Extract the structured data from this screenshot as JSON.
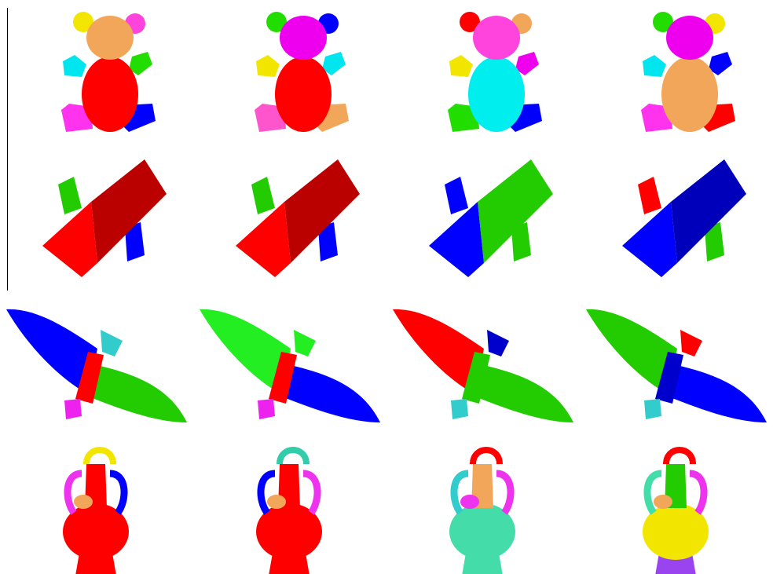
{
  "figure": {
    "rows": [
      {
        "shape": "teddy-bear",
        "segmentations": [
          {
            "head": "#f2a65a",
            "ear_left": "#f2e600",
            "ear_right": "#ff44dd",
            "arm_left": "#00e5ee",
            "arm_right": "#22dd00",
            "body": "#ff0000",
            "leg_left": "#ff33ee",
            "leg_right": "#0000ff"
          },
          {
            "head": "#ee00ee",
            "ear_left": "#22dd00",
            "ear_right": "#0000ff",
            "arm_left": "#f2e600",
            "arm_right": "#00e5ee",
            "body": "#ff0000",
            "leg_left": "#ff55cc",
            "leg_right": "#f2a65a"
          },
          {
            "head": "#ff44dd",
            "ear_left": "#ff0000",
            "ear_right": "#f2a65a",
            "arm_left": "#f2e600",
            "arm_right": "#ee00ee",
            "body": "#00eeee",
            "leg_left": "#22dd00",
            "leg_right": "#0000ff"
          },
          {
            "head": "#ee00ee",
            "ear_left": "#22dd00",
            "ear_right": "#f2e600",
            "arm_left": "#00e5ee",
            "arm_right": "#0000ff",
            "body": "#f2a65a",
            "leg_left": "#ff33ee",
            "leg_right": "#ff0000"
          }
        ]
      },
      {
        "shape": "block",
        "segmentations": [
          {
            "top": "#bb0000",
            "front": "#ff0000",
            "peg_back": "#22cc00",
            "peg_front": "#0000ff"
          },
          {
            "top": "#bb0000",
            "front": "#ff0000",
            "peg_back": "#22cc00",
            "peg_front": "#0000ff"
          },
          {
            "top": "#22cc00",
            "front": "#0000ff",
            "peg_back": "#0000ff",
            "peg_front": "#22cc00"
          },
          {
            "top": "#0000bb",
            "front": "#0000ff",
            "peg_back": "#ff0000",
            "peg_front": "#22cc00"
          }
        ]
      },
      {
        "shape": "bird",
        "segmentations": [
          {
            "wing_left": "#0000ff",
            "wing_right": "#22cc00",
            "body": "#ff0000",
            "tail": "#33cccc",
            "head": "#ee22ee"
          },
          {
            "wing_left": "#22ee22",
            "wing_right": "#0000ff",
            "body": "#ff0000",
            "tail": "#22ee22",
            "head": "#ee22ee"
          },
          {
            "wing_left": "#ff0000",
            "wing_right": "#22cc00",
            "body": "#22cc00",
            "tail": "#0000cc",
            "head": "#33cccc"
          },
          {
            "wing_left": "#22cc00",
            "wing_right": "#0000ff",
            "body": "#0000cc",
            "tail": "#ff0000",
            "head": "#33cccc"
          }
        ]
      },
      {
        "shape": "vase",
        "segmentations": [
          {
            "top_handle": "#f2e600",
            "handle_left": "#ee33ee",
            "handle_right": "#0000ff",
            "neck": "#ff0000",
            "body": "#ff0000",
            "base": "#ff0000",
            "spout": "#f2a65a"
          },
          {
            "top_handle": "#33ccaa",
            "handle_left": "#0000ff",
            "handle_right": "#ee33ee",
            "neck": "#ff0000",
            "body": "#ff0000",
            "base": "#ff0000",
            "spout": "#f2a65a"
          },
          {
            "top_handle": "#ff0000",
            "handle_left": "#33cccc",
            "handle_right": "#ee33ee",
            "neck": "#f2a65a",
            "body": "#44ddaa",
            "base": "#44ddaa",
            "spout": "#ee33ee"
          },
          {
            "top_handle": "#ff0000",
            "handle_left": "#44ddaa",
            "handle_right": "#ee33ee",
            "neck": "#22cc00",
            "body": "#f2e600",
            "base": "#9944ee",
            "spout": "#f2a65a"
          }
        ]
      }
    ]
  }
}
